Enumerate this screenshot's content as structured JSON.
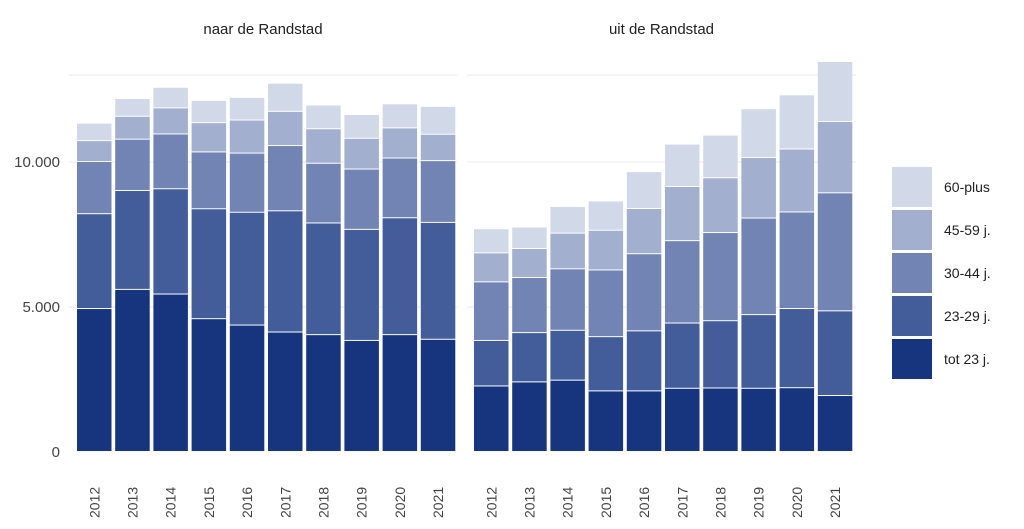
{
  "chart_data": {
    "type": "bar",
    "stacked": true,
    "legend_position": "right",
    "grid": true,
    "ylim": [
      0,
      14000
    ],
    "yticks": [
      {
        "value": 0,
        "label": "0"
      },
      {
        "value": 5000,
        "label": "5.000"
      },
      {
        "value": 10000,
        "label": "10.000"
      }
    ],
    "categories": [
      "2012",
      "2013",
      "2014",
      "2015",
      "2016",
      "2017",
      "2018",
      "2019",
      "2020",
      "2021"
    ],
    "series_order": [
      "tot 23 j.",
      "23-29 j.",
      "30-44 j.",
      "45-59 j.",
      "60-plus"
    ],
    "colors": {
      "tot 23 j.": "#17357e",
      "23-29 j.": "#425d99",
      "30-44 j.": "#7284b3",
      "45-59 j.": "#a2afcf",
      "60-plus": "#d1d8e8"
    },
    "legend": [
      {
        "name": "60-plus",
        "color": "#d1d8e8"
      },
      {
        "name": "45-59 j.",
        "color": "#a2afcf"
      },
      {
        "name": "30-44 j.",
        "color": "#7284b3"
      },
      {
        "name": "23-29 j.",
        "color": "#425d99"
      },
      {
        "name": "tot 23 j.",
        "color": "#17357e"
      }
    ],
    "panels": [
      {
        "title": "naar de Randstad",
        "series": [
          {
            "name": "tot 23 j.",
            "values": [
              4930,
              5590,
              5430,
              4580,
              4360,
              4120,
              4030,
              3830,
              4030,
              3870
            ]
          },
          {
            "name": "23-29 j.",
            "values": [
              3270,
              3410,
              3630,
              3790,
              3890,
              4180,
              3850,
              3830,
              4030,
              4030
            ]
          },
          {
            "name": "30-44 j.",
            "values": [
              1800,
              1770,
              1890,
              1960,
              2040,
              2250,
              2060,
              2080,
              2060,
              2130
            ]
          },
          {
            "name": "45-59 j.",
            "values": [
              720,
              790,
              900,
              1010,
              1140,
              1180,
              1190,
              1060,
              1040,
              910
            ]
          },
          {
            "name": "60-plus",
            "values": [
              600,
              610,
              710,
              770,
              780,
              970,
              820,
              820,
              830,
              960
            ]
          }
        ]
      },
      {
        "title": "uit de Randstad",
        "series": [
          {
            "name": "tot 23 j.",
            "values": [
              2260,
              2400,
              2460,
              2090,
              2090,
              2180,
              2190,
              2180,
              2200,
              1930
            ]
          },
          {
            "name": "23-29 j.",
            "values": [
              1570,
              1700,
              1720,
              1870,
              2070,
              2250,
              2320,
              2540,
              2730,
              2920
            ]
          },
          {
            "name": "30-44 j.",
            "values": [
              2020,
              1900,
              2120,
              2300,
              2660,
              2840,
              3040,
              3330,
              3330,
              4070
            ]
          },
          {
            "name": "45-59 j.",
            "values": [
              1000,
              1000,
              1230,
              1370,
              1560,
              1870,
              1890,
              2090,
              2170,
              2460
            ]
          },
          {
            "name": "60-plus",
            "values": [
              830,
              740,
              920,
              1010,
              1270,
              1460,
              1470,
              1680,
              1870,
              2070
            ]
          }
        ]
      }
    ]
  }
}
